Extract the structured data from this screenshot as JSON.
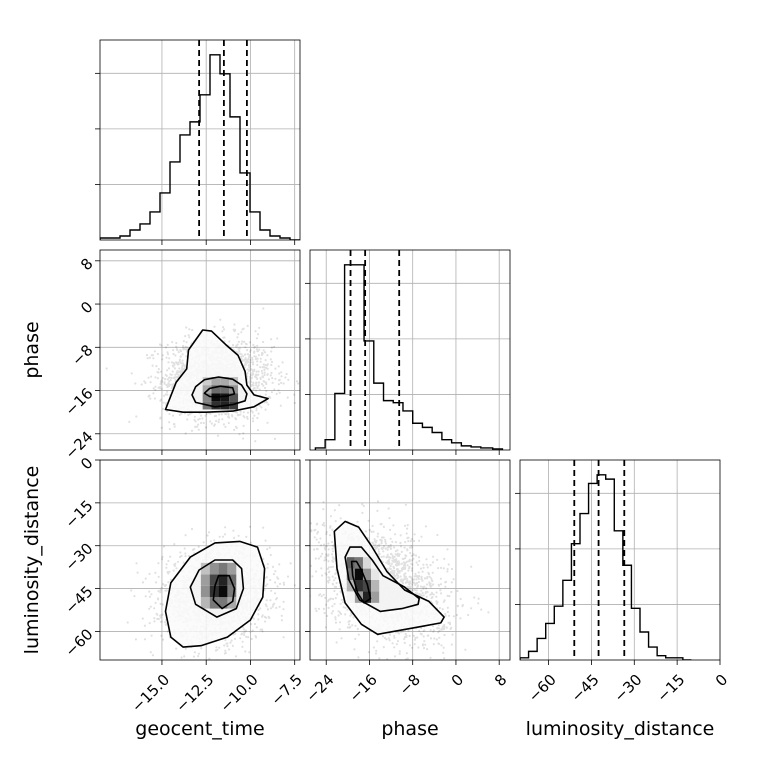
{
  "chart_data": {
    "type": "corner",
    "title": "",
    "parameters": [
      {
        "name": "geocent_time",
        "label": "geocent_time",
        "range": [
          -18.5,
          -7.2
        ],
        "ticks": [
          -15.0,
          -12.5,
          -10.0,
          -7.5
        ],
        "tick_labels": [
          "−15.0",
          "−12.5",
          "−10.0",
          "−7.5"
        ],
        "quantiles": [
          -12.9,
          -11.5,
          -10.2
        ],
        "histogram": {
          "edges": [
            -18.5,
            -17.935,
            -17.37,
            -16.805,
            -16.24,
            -15.675,
            -15.11,
            -14.545,
            -13.98,
            -13.415,
            -12.85,
            -12.285,
            -11.72,
            -11.155,
            -10.59,
            -10.025,
            -9.46,
            -8.895,
            -8.33,
            -7.765,
            -7.2
          ],
          "counts": [
            2,
            2,
            4,
            10,
            16,
            28,
            47,
            78,
            105,
            118,
            145,
            185,
            166,
            123,
            67,
            28,
            10,
            4,
            2,
            0
          ]
        }
      },
      {
        "name": "phase",
        "label": "phase",
        "range": [
          -27,
          10
        ],
        "ticks": [
          -24,
          -16,
          -8,
          0,
          8
        ],
        "tick_labels": [
          "−24",
          "−16",
          "−8",
          "0",
          "8"
        ],
        "quantiles": [
          -19.5,
          -16.8,
          -10.5
        ],
        "histogram": {
          "edges": [
            -26,
            -24.2,
            -22.4,
            -20.6,
            -18.8,
            -17.0,
            -15.2,
            -13.4,
            -11.6,
            -9.8,
            -8.0,
            -6.2,
            -4.4,
            -2.6,
            -0.8,
            1.0,
            2.8,
            4.6,
            6.8,
            8.6
          ],
          "counts": [
            2,
            10,
            55,
            180,
            180,
            106,
            65,
            48,
            46,
            38,
            26,
            22,
            17,
            10,
            7,
            4,
            3,
            2,
            1
          ]
        }
      },
      {
        "name": "luminosity_distance",
        "label": "luminosity_distance",
        "range": [
          -70,
          0
        ],
        "ticks": [
          -60,
          -45,
          -30,
          -15,
          0
        ],
        "tick_labels": [
          "−60",
          "−45",
          "−30",
          "−15",
          "0"
        ],
        "quantiles": [
          -51,
          -42.5,
          -33.5
        ],
        "histogram": {
          "edges": [
            -70,
            -67,
            -64,
            -61,
            -58,
            -55,
            -52,
            -49,
            -46,
            -43,
            -40,
            -37,
            -34,
            -31,
            -28,
            -25,
            -22,
            -19,
            -16,
            -13,
            -10
          ],
          "counts": [
            1,
            4,
            10,
            17,
            25,
            37,
            54,
            68,
            82,
            86,
            84,
            60,
            44,
            24,
            13,
            6,
            2,
            1,
            1,
            0
          ]
        }
      }
    ],
    "pairs": [
      {
        "x": "geocent_time",
        "y": "phase",
        "grid": {
          "x_edges": [
            -12.7,
            -12.2,
            -11.7,
            -11.2,
            -10.7
          ],
          "y_edges": [
            -19.5,
            -18.0,
            -16.5,
            -15.0,
            -13.5
          ],
          "density": [
            [
              0.55,
              0.85,
              0.9,
              0.8
            ],
            [
              0.5,
              1.0,
              0.95,
              0.7
            ],
            [
              0.35,
              0.6,
              0.6,
              0.45
            ],
            [
              0.2,
              0.35,
              0.35,
              0.25
            ]
          ]
        },
        "contours": [
          [
            [
              -11.9,
              -17.2
            ],
            [
              -11.3,
              -17.0
            ],
            [
              -10.9,
              -16.6
            ],
            [
              -11.0,
              -15.5
            ],
            [
              -11.7,
              -15.2
            ],
            [
              -12.3,
              -15.6
            ],
            [
              -12.6,
              -16.5
            ],
            [
              -12.3,
              -17.1
            ]
          ],
          [
            [
              -12.0,
              -19.0
            ],
            [
              -11.0,
              -18.6
            ],
            [
              -10.3,
              -17.9
            ],
            [
              -10.2,
              -16.6
            ],
            [
              -10.5,
              -15.0
            ],
            [
              -11.0,
              -13.9
            ],
            [
              -11.8,
              -13.5
            ],
            [
              -12.6,
              -14.0
            ],
            [
              -13.1,
              -15.3
            ],
            [
              -13.3,
              -16.8
            ],
            [
              -13.1,
              -18.2
            ]
          ],
          [
            [
              -12.5,
              -20.0
            ],
            [
              -11.0,
              -19.8
            ],
            [
              -9.8,
              -19.0
            ],
            [
              -9.0,
              -17.5
            ],
            [
              -9.8,
              -16.8
            ],
            [
              -10.2,
              -15.0
            ],
            [
              -10.3,
              -12.5
            ],
            [
              -10.7,
              -9.5
            ],
            [
              -11.4,
              -7.5
            ],
            [
              -12.2,
              -5.0
            ],
            [
              -12.7,
              -4.8
            ],
            [
              -13.5,
              -8.5
            ],
            [
              -13.6,
              -12.0
            ],
            [
              -14.2,
              -14.5
            ],
            [
              -14.8,
              -19.5
            ],
            [
              -13.8,
              -20.0
            ]
          ]
        ]
      },
      {
        "x": "geocent_time",
        "y": "luminosity_distance",
        "grid": {
          "x_edges": [
            -12.8,
            -12.3,
            -11.8,
            -11.3,
            -10.8
          ],
          "y_edges": [
            -52,
            -48,
            -44,
            -40,
            -36
          ],
          "density": [
            [
              0.3,
              0.55,
              0.55,
              0.35
            ],
            [
              0.45,
              0.85,
              1.0,
              0.55
            ],
            [
              0.4,
              0.75,
              0.9,
              0.6
            ],
            [
              0.25,
              0.45,
              0.55,
              0.4
            ]
          ]
        },
        "contours": [
          [
            [
              -11.6,
              -52.0
            ],
            [
              -11.0,
              -49.5
            ],
            [
              -10.9,
              -45.0
            ],
            [
              -11.2,
              -40.5
            ],
            [
              -11.8,
              -40.5
            ],
            [
              -12.0,
              -44.0
            ],
            [
              -12.1,
              -49.0
            ]
          ],
          [
            [
              -11.9,
              -55.0
            ],
            [
              -10.8,
              -52.0
            ],
            [
              -10.4,
              -45.0
            ],
            [
              -10.5,
              -38.0
            ],
            [
              -11.0,
              -35.0
            ],
            [
              -12.0,
              -35.0
            ],
            [
              -12.9,
              -38.5
            ],
            [
              -13.4,
              -44.5
            ],
            [
              -13.1,
              -50.5
            ]
          ],
          [
            [
              -12.8,
              -65.0
            ],
            [
              -11.3,
              -62.0
            ],
            [
              -10.0,
              -56.0
            ],
            [
              -9.3,
              -48.0
            ],
            [
              -9.2,
              -38.0
            ],
            [
              -9.6,
              -30.5
            ],
            [
              -10.6,
              -28.5
            ],
            [
              -12.0,
              -29.0
            ],
            [
              -13.4,
              -34.0
            ],
            [
              -14.5,
              -43.0
            ],
            [
              -14.8,
              -53.0
            ],
            [
              -14.5,
              -62.0
            ],
            [
              -13.8,
              -65.5
            ]
          ]
        ]
      },
      {
        "x": "phase",
        "y": "luminosity_distance",
        "grid": {
          "x_edges": [
            -20.2,
            -18.7,
            -17.2,
            -15.7,
            -14.2
          ],
          "y_edges": [
            -50,
            -46,
            -42,
            -38,
            -34
          ],
          "density": [
            [
              0.05,
              0.4,
              0.9,
              0.4
            ],
            [
              0.3,
              0.85,
              0.75,
              0.3
            ],
            [
              0.55,
              1.0,
              0.45,
              0.1
            ],
            [
              0.65,
              0.55,
              0.15,
              0.05
            ]
          ]
        },
        "contours": [
          [
            [
              -17.0,
              -50.0
            ],
            [
              -15.8,
              -48.5
            ],
            [
              -16.4,
              -43.5
            ],
            [
              -17.5,
              -38.5
            ],
            [
              -18.4,
              -35.5
            ],
            [
              -19.3,
              -35.5
            ],
            [
              -19.1,
              -40.5
            ],
            [
              -18.2,
              -46.5
            ]
          ],
          [
            [
              -14.0,
              -53.0
            ],
            [
              -10.0,
              -52.0
            ],
            [
              -7.0,
              -50.5
            ],
            [
              -6.8,
              -48.5
            ],
            [
              -9.5,
              -44.5
            ],
            [
              -13.5,
              -40.5
            ],
            [
              -15.5,
              -35.0
            ],
            [
              -17.5,
              -30.5
            ],
            [
              -19.6,
              -30.5
            ],
            [
              -20.5,
              -34.0
            ],
            [
              -19.8,
              -42.0
            ],
            [
              -17.8,
              -49.0
            ]
          ],
          [
            [
              -14.5,
              -61.0
            ],
            [
              -7.0,
              -58.5
            ],
            [
              -2.8,
              -57.0
            ],
            [
              -2.2,
              -55.0
            ],
            [
              -5.0,
              -49.5
            ],
            [
              -9.5,
              -45.5
            ],
            [
              -12.8,
              -39.0
            ],
            [
              -15.5,
              -30.5
            ],
            [
              -18.0,
              -23.5
            ],
            [
              -20.5,
              -21.5
            ],
            [
              -22.5,
              -25.0
            ],
            [
              -22.0,
              -38.0
            ],
            [
              -20.5,
              -50.0
            ],
            [
              -17.5,
              -57.5
            ]
          ]
        ]
      }
    ],
    "grid": true,
    "legend": "none"
  }
}
